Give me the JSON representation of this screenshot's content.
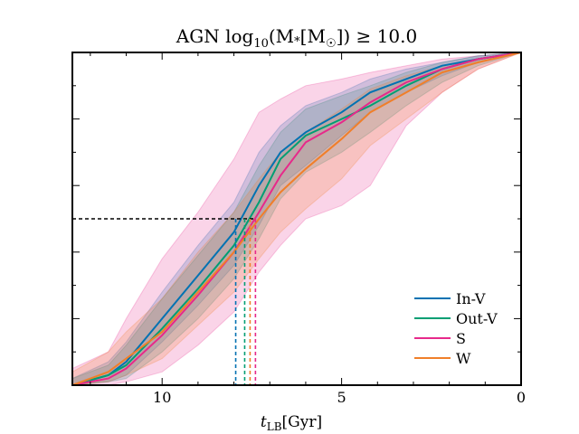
{
  "chart_data": {
    "type": "line",
    "title": {
      "prefix": "AGN log",
      "sub": "10",
      "mid": "(M",
      "star": "*",
      "bracket": "[M",
      "sun": "☉",
      "suffix": "])  ≥  10.0"
    },
    "xlabel": {
      "main": "t",
      "sub": "LB",
      "unit": "[Gyr]"
    },
    "ylabel": "",
    "xlim": [
      12.5,
      0
    ],
    "ylim": [
      0,
      1
    ],
    "x_ticks": [
      10,
      5,
      0
    ],
    "x_tick_labels": [
      "10",
      "5",
      "0"
    ],
    "legend_position": "lower-right",
    "threshold_y": 0.5,
    "series": [
      {
        "name": "In-V",
        "color": "#0072b2",
        "x": [
          12.5,
          11.5,
          11.0,
          10.0,
          9.0,
          8.0,
          7.3,
          6.7,
          6.0,
          5.0,
          4.2,
          3.2,
          2.2,
          1.2,
          0.0
        ],
        "y": [
          0.0,
          0.03,
          0.07,
          0.2,
          0.33,
          0.46,
          0.6,
          0.7,
          0.76,
          0.82,
          0.88,
          0.92,
          0.96,
          0.98,
          1.0
        ],
        "band_upper": [
          0.02,
          0.07,
          0.13,
          0.28,
          0.42,
          0.55,
          0.7,
          0.78,
          0.84,
          0.88,
          0.92,
          0.95,
          0.97,
          0.99,
          1.0
        ],
        "band_lower": [
          0.0,
          0.01,
          0.03,
          0.13,
          0.24,
          0.36,
          0.48,
          0.6,
          0.66,
          0.75,
          0.82,
          0.88,
          0.93,
          0.97,
          1.0
        ],
        "t50": 7.95
      },
      {
        "name": "Out-V",
        "color": "#009e73",
        "x": [
          12.5,
          11.5,
          11.0,
          10.0,
          9.0,
          8.0,
          7.3,
          6.7,
          6.0,
          5.0,
          4.2,
          3.2,
          2.2,
          1.2,
          0.0
        ],
        "y": [
          0.0,
          0.03,
          0.06,
          0.17,
          0.29,
          0.42,
          0.55,
          0.68,
          0.75,
          0.8,
          0.84,
          0.9,
          0.95,
          0.98,
          1.0
        ],
        "band_upper": [
          0.02,
          0.06,
          0.12,
          0.26,
          0.39,
          0.52,
          0.66,
          0.76,
          0.83,
          0.87,
          0.9,
          0.94,
          0.97,
          0.99,
          1.0
        ],
        "band_lower": [
          0.0,
          0.01,
          0.02,
          0.1,
          0.2,
          0.32,
          0.44,
          0.56,
          0.64,
          0.7,
          0.76,
          0.84,
          0.91,
          0.96,
          1.0
        ],
        "t50": 7.7
      },
      {
        "name": "S",
        "color": "#e7298a",
        "x": [
          12.5,
          11.5,
          11.0,
          10.0,
          9.0,
          8.0,
          7.3,
          6.7,
          6.0,
          5.0,
          4.2,
          3.2,
          2.2,
          1.2,
          0.0
        ],
        "y": [
          0.0,
          0.02,
          0.05,
          0.15,
          0.27,
          0.4,
          0.52,
          0.63,
          0.73,
          0.79,
          0.85,
          0.91,
          0.95,
          0.98,
          1.0
        ],
        "band_upper": [
          0.05,
          0.1,
          0.2,
          0.38,
          0.52,
          0.68,
          0.82,
          0.86,
          0.9,
          0.92,
          0.94,
          0.96,
          0.98,
          0.99,
          1.0
        ],
        "band_lower": [
          0.0,
          0.0,
          0.01,
          0.04,
          0.12,
          0.22,
          0.34,
          0.42,
          0.5,
          0.54,
          0.6,
          0.78,
          0.88,
          0.95,
          1.0
        ],
        "t50": 7.4
      },
      {
        "name": "W",
        "color": "#f07f2a",
        "x": [
          12.5,
          11.5,
          11.0,
          10.0,
          9.0,
          8.0,
          7.3,
          6.7,
          6.0,
          5.0,
          4.2,
          3.2,
          2.2,
          1.2,
          0.0
        ],
        "y": [
          0.0,
          0.04,
          0.08,
          0.16,
          0.28,
          0.4,
          0.5,
          0.58,
          0.65,
          0.74,
          0.82,
          0.88,
          0.94,
          0.97,
          1.0
        ],
        "band_upper": [
          0.04,
          0.1,
          0.16,
          0.26,
          0.4,
          0.52,
          0.62,
          0.7,
          0.76,
          0.83,
          0.89,
          0.93,
          0.96,
          0.98,
          1.0
        ],
        "band_lower": [
          0.0,
          0.01,
          0.03,
          0.08,
          0.18,
          0.28,
          0.38,
          0.46,
          0.53,
          0.62,
          0.72,
          0.8,
          0.88,
          0.95,
          1.0
        ],
        "t50": 7.55
      }
    ]
  }
}
